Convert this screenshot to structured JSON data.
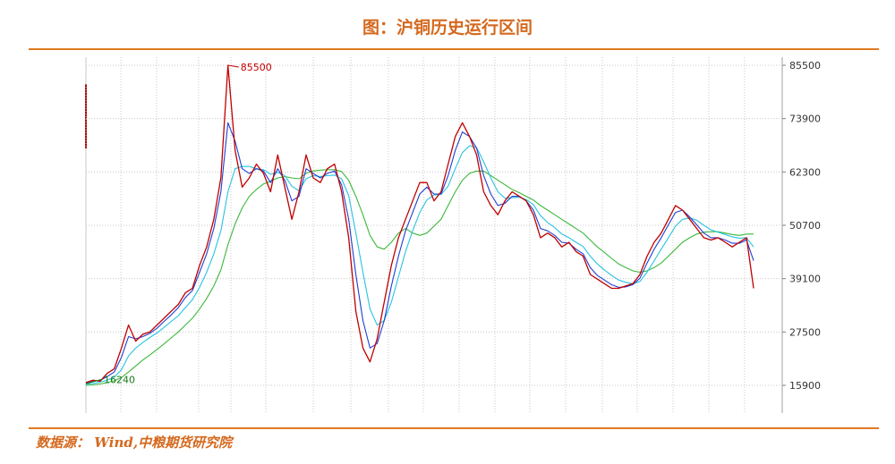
{
  "title": "图：沪铜历史运行区间",
  "source": "数据源：  Wind,中粮期货研究院",
  "chart_data": {
    "type": "line",
    "y_ticks": [
      15900,
      27500,
      39100,
      50700,
      62300,
      73900,
      85500
    ],
    "ylim": [
      10000,
      88000
    ],
    "annotations": [
      {
        "label": "85500",
        "value": 85500,
        "color": "#c00000"
      },
      {
        "label": "16240",
        "value": 16240,
        "color": "#1a7a1a"
      }
    ],
    "series": [
      {
        "color": "#c00000",
        "values": [
          16500,
          17000,
          16800,
          18500,
          19500,
          24000,
          29000,
          25500,
          27000,
          27500,
          29000,
          30500,
          32000,
          33500,
          36000,
          37000,
          42000,
          46000,
          52000,
          61000,
          85500,
          67000,
          59000,
          61000,
          64000,
          62000,
          58000,
          66000,
          59000,
          52000,
          58000,
          66000,
          61000,
          60000,
          63000,
          64000,
          58000,
          48000,
          32000,
          24000,
          21000,
          26000,
          34000,
          42000,
          48000,
          52000,
          56000,
          60000,
          60000,
          56000,
          58000,
          64000,
          70000,
          73000,
          70000,
          66000,
          58000,
          55000,
          53000,
          56000,
          58000,
          57000,
          56000,
          53000,
          48000,
          49000,
          48000,
          46000,
          47000,
          45000,
          44000,
          40000,
          39000,
          38000,
          37000,
          37000,
          37500,
          38000,
          40000,
          44000,
          47000,
          49000,
          52000,
          55000,
          54000,
          52000,
          50000,
          48000,
          47500,
          48000,
          47000,
          46000,
          47000,
          48000,
          37000
        ]
      },
      {
        "color": "#1f3fd0",
        "values": [
          16300,
          16800,
          17000,
          17800,
          18800,
          22000,
          26500,
          26000,
          26500,
          27200,
          28300,
          29800,
          31200,
          32800,
          35000,
          36500,
          40500,
          44500,
          50000,
          58000,
          73000,
          69000,
          63000,
          62000,
          63000,
          62500,
          60000,
          63000,
          60500,
          56000,
          57000,
          63000,
          62000,
          61000,
          62000,
          62500,
          59500,
          52000,
          40000,
          30000,
          24000,
          25000,
          30000,
          37500,
          44000,
          49500,
          53500,
          57500,
          59000,
          57500,
          57500,
          61500,
          67000,
          71000,
          70000,
          67500,
          61500,
          57500,
          55000,
          55500,
          57000,
          57000,
          56000,
          54000,
          50000,
          49500,
          48500,
          47000,
          46800,
          45500,
          44500,
          41500,
          39800,
          38800,
          37800,
          37200,
          37300,
          37800,
          39200,
          42500,
          45500,
          48000,
          50800,
          53500,
          54000,
          52500,
          50800,
          49000,
          48000,
          48000,
          47500,
          46800,
          46800,
          47500,
          43000
        ]
      },
      {
        "color": "#29c3e0",
        "values": [
          16100,
          16300,
          16600,
          17000,
          17700,
          19300,
          22300,
          24000,
          25200,
          26300,
          27300,
          28500,
          29800,
          31000,
          32800,
          34500,
          37200,
          40500,
          44500,
          49500,
          58000,
          63000,
          63500,
          63500,
          63000,
          62800,
          61800,
          62200,
          61500,
          59200,
          58200,
          60800,
          61500,
          61300,
          61500,
          61600,
          60800,
          57200,
          49000,
          40500,
          32500,
          29000,
          30000,
          34000,
          39500,
          45000,
          49500,
          53500,
          56200,
          57300,
          57400,
          59200,
          63000,
          66500,
          68000,
          67600,
          64500,
          61000,
          58000,
          56600,
          56700,
          56800,
          56300,
          55200,
          52800,
          51300,
          50200,
          48800,
          48000,
          47000,
          46100,
          44000,
          42300,
          41000,
          39800,
          38800,
          38300,
          38000,
          38500,
          40500,
          43000,
          45500,
          48000,
          50500,
          52000,
          52300,
          51800,
          50700,
          49700,
          49200,
          48700,
          48200,
          47900,
          48000,
          46000
        ]
      },
      {
        "color": "#3bb83b",
        "values": [
          15900,
          16000,
          16200,
          16500,
          16900,
          17600,
          18800,
          20100,
          21400,
          22500,
          23700,
          24900,
          26200,
          27500,
          29000,
          30500,
          32500,
          34800,
          37500,
          41000,
          46500,
          51000,
          54500,
          57000,
          58500,
          59700,
          60300,
          61000,
          61300,
          61000,
          60800,
          62000,
          62500,
          62700,
          62800,
          62800,
          62400,
          60500,
          57000,
          53000,
          48500,
          46000,
          45500,
          47000,
          49000,
          50000,
          49000,
          48500,
          49000,
          50500,
          52000,
          55000,
          58000,
          60500,
          62000,
          62500,
          62500,
          61500,
          60500,
          59500,
          58500,
          57800,
          57000,
          56200,
          55000,
          54000,
          53000,
          52000,
          51000,
          50000,
          49000,
          47500,
          46000,
          44800,
          43500,
          42300,
          41500,
          40800,
          40500,
          40800,
          41500,
          42500,
          44000,
          45500,
          47000,
          48000,
          48800,
          49200,
          49300,
          49300,
          49000,
          48700,
          48500,
          48800,
          48800
        ]
      }
    ],
    "grid": true,
    "y_axis_position": "right"
  }
}
